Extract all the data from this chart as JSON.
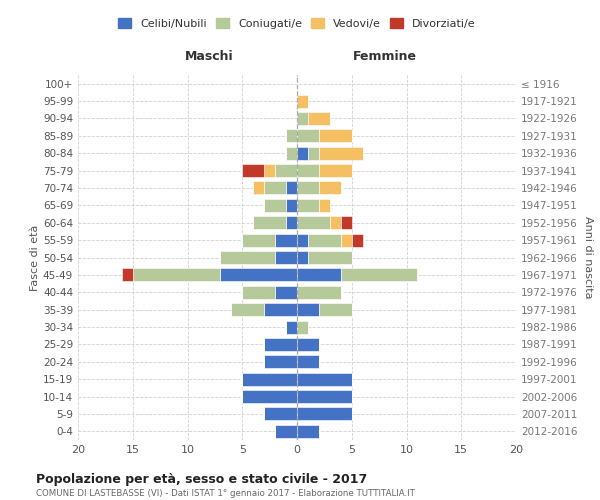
{
  "age_groups": [
    "0-4",
    "5-9",
    "10-14",
    "15-19",
    "20-24",
    "25-29",
    "30-34",
    "35-39",
    "40-44",
    "45-49",
    "50-54",
    "55-59",
    "60-64",
    "65-69",
    "70-74",
    "75-79",
    "80-84",
    "85-89",
    "90-94",
    "95-99",
    "100+"
  ],
  "birth_years": [
    "2012-2016",
    "2007-2011",
    "2002-2006",
    "1997-2001",
    "1992-1996",
    "1987-1991",
    "1982-1986",
    "1977-1981",
    "1972-1976",
    "1967-1971",
    "1962-1966",
    "1957-1961",
    "1952-1956",
    "1947-1951",
    "1942-1946",
    "1937-1941",
    "1932-1936",
    "1927-1931",
    "1922-1926",
    "1917-1921",
    "≤ 1916"
  ],
  "males": {
    "celibi": [
      2,
      3,
      5,
      5,
      3,
      3,
      1,
      3,
      2,
      7,
      2,
      2,
      1,
      1,
      1,
      0,
      0,
      0,
      0,
      0,
      0
    ],
    "coniugati": [
      0,
      0,
      0,
      0,
      0,
      0,
      0,
      3,
      3,
      8,
      5,
      3,
      3,
      2,
      2,
      2,
      1,
      1,
      0,
      0,
      0
    ],
    "vedovi": [
      0,
      0,
      0,
      0,
      0,
      0,
      0,
      0,
      0,
      0,
      0,
      0,
      0,
      0,
      1,
      1,
      0,
      0,
      0,
      0,
      0
    ],
    "divorziati": [
      0,
      0,
      0,
      0,
      0,
      0,
      0,
      0,
      0,
      1,
      0,
      0,
      0,
      0,
      0,
      2,
      0,
      0,
      0,
      0,
      0
    ]
  },
  "females": {
    "nubili": [
      2,
      5,
      5,
      5,
      2,
      2,
      0,
      2,
      0,
      4,
      1,
      1,
      0,
      0,
      0,
      0,
      1,
      0,
      0,
      0,
      0
    ],
    "coniugate": [
      0,
      0,
      0,
      0,
      0,
      0,
      1,
      3,
      4,
      7,
      4,
      3,
      3,
      2,
      2,
      2,
      1,
      2,
      1,
      0,
      0
    ],
    "vedove": [
      0,
      0,
      0,
      0,
      0,
      0,
      0,
      0,
      0,
      0,
      0,
      1,
      1,
      1,
      2,
      3,
      4,
      3,
      2,
      1,
      0
    ],
    "divorziate": [
      0,
      0,
      0,
      0,
      0,
      0,
      0,
      0,
      0,
      0,
      0,
      1,
      1,
      0,
      0,
      0,
      0,
      0,
      0,
      0,
      0
    ]
  },
  "colors": {
    "celibi": "#4472c4",
    "coniugati": "#b5c99a",
    "vedovi": "#f5c064",
    "divorziati": "#c0392b"
  },
  "title": "Popolazione per età, sesso e stato civile - 2017",
  "subtitle": "COMUNE DI LASTEBASSE (VI) - Dati ISTAT 1° gennaio 2017 - Elaborazione TUTTITALIA.IT",
  "xlabel_left": "Maschi",
  "xlabel_right": "Femmine",
  "ylabel_left": "Fasce di età",
  "ylabel_right": "Anni di nascita",
  "xlim": 20,
  "legend_labels": [
    "Celibi/Nubili",
    "Coniugati/e",
    "Vedovi/e",
    "Divorziati/e"
  ],
  "background_color": "#ffffff",
  "grid_color": "#cccccc"
}
